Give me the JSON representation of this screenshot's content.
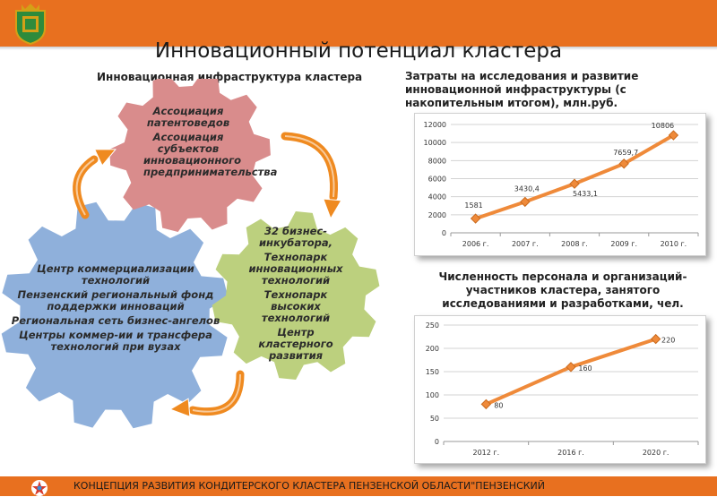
{
  "header": {
    "crest_icon": "coat-of-arms-icon"
  },
  "page_title": "Инновационный потенциал кластера",
  "left_caption": "Инновационная инфраструктура кластера",
  "gears": {
    "red": [
      "Ассоциация патентоведов",
      "Ассоциация субъектов инновационного предпринимательства"
    ],
    "green": [
      "32 бизнес-инкубатора,",
      "Технопарк инновационных технологий",
      "Технопарк высоких технологий",
      "Центр кластерного развития"
    ],
    "blue": [
      "Центр коммерциализации технологий",
      "Пензенский региональный фонд поддержки инноваций",
      "Региональная сеть бизнес-ангелов",
      "Центры коммер-ии и трансфера технологий при вузах"
    ],
    "colors": {
      "red": "#d98c8c",
      "green": "#bcd07e",
      "blue": "#8fb0db",
      "arrow": "#ef8a20"
    }
  },
  "chart1_caption": "Затраты на исследования и развитие инновационной инфраструктуры (с накопительным итогом), млн.руб.",
  "chart2_caption": "Численность персонала и организаций-участников кластера, занятого исследованиями и разработками, чел.",
  "footer": {
    "text": "КОНЦЕПЦИЯ РАЗВИТИЯ КОНДИТЕРСКОГО КЛАСТЕРА ПЕНЗЕНСКОЙ ОБЛАСТИ\"ПЕНЗЕНСКИЙ",
    "logo_icon": "star-logo-icon"
  },
  "chart_data": [
    {
      "type": "line",
      "categories": [
        "2006 г.",
        "2007 г.",
        "2008 г.",
        "2009 г.",
        "2010 г."
      ],
      "values": [
        1581,
        3430.4,
        5433.1,
        7659.7,
        10806
      ],
      "data_labels": [
        "1581",
        "3430,4",
        "5433,1",
        "7659,7",
        "10806"
      ],
      "ylim": [
        0,
        12000
      ],
      "yticks": [
        0,
        2000,
        4000,
        6000,
        8000,
        10000,
        12000
      ],
      "grid": true,
      "color": "#ef8a3a"
    },
    {
      "type": "line",
      "categories": [
        "2012 г.",
        "2016 г.",
        "2020 г."
      ],
      "values": [
        80,
        160,
        220
      ],
      "data_labels": [
        "80",
        "160",
        "220"
      ],
      "ylim": [
        0,
        250
      ],
      "yticks": [
        0,
        50,
        100,
        150,
        200,
        250
      ],
      "grid": true,
      "color": "#ef8a3a"
    }
  ]
}
